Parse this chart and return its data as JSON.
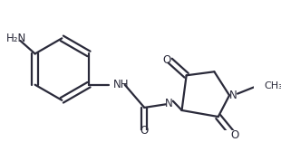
{
  "bg_color": "#ffffff",
  "line_color": "#2a2a3a",
  "bond_lw": 1.6,
  "font_size": 8.5,
  "small_font": 8,
  "figsize": [
    3.1,
    1.57
  ],
  "dpi": 100,
  "xlim": [
    0,
    310
  ],
  "ylim": [
    0,
    157
  ]
}
